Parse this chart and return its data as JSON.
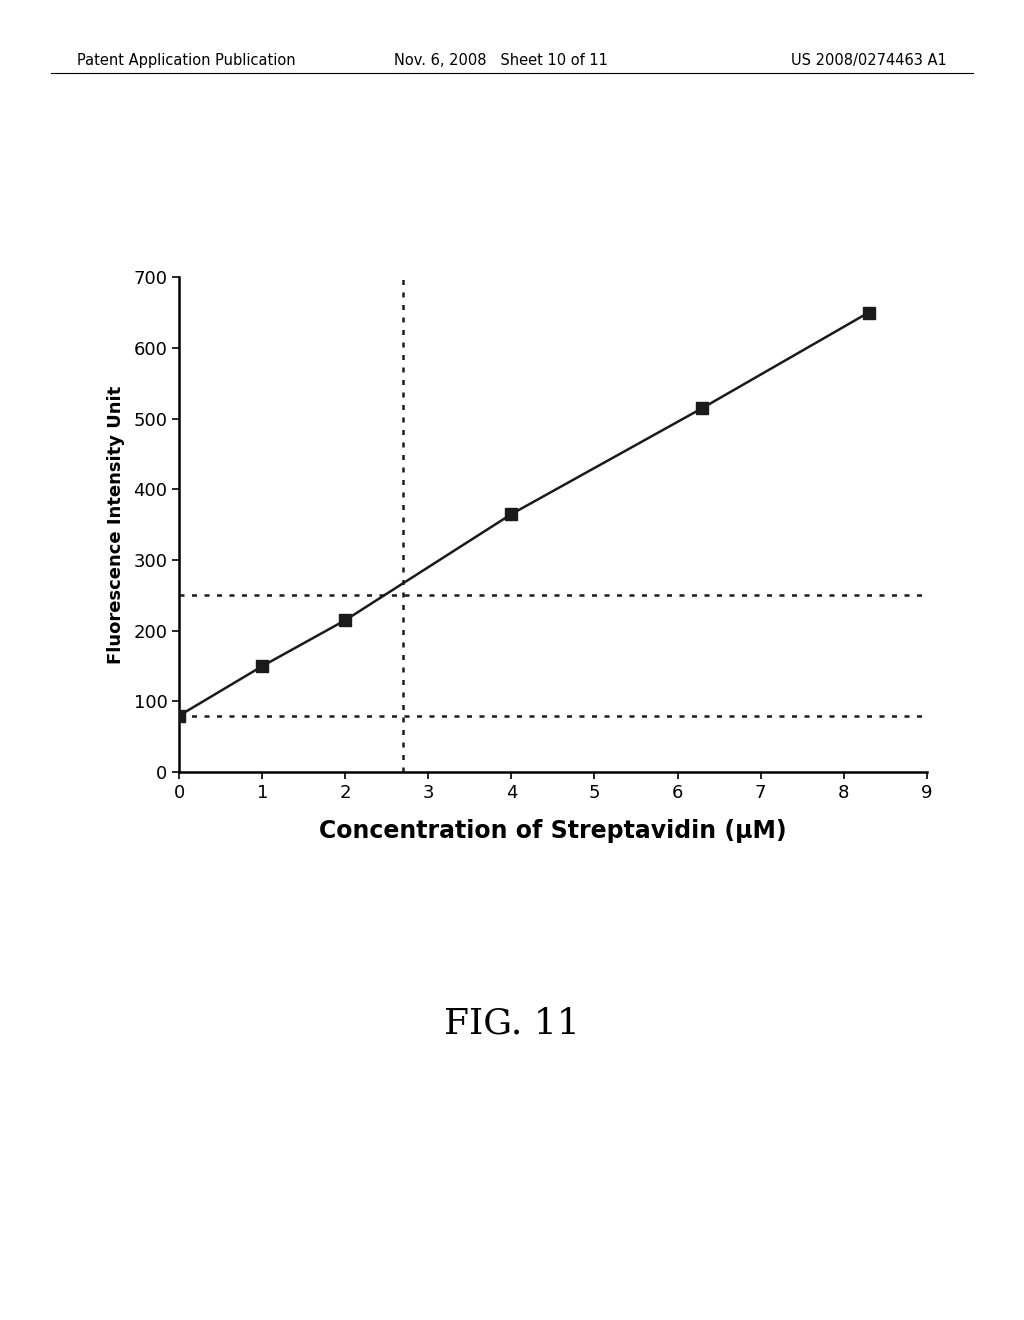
{
  "x_data": [
    0,
    1,
    2,
    4,
    6.3,
    8.3
  ],
  "y_data": [
    80,
    150,
    215,
    365,
    515,
    650
  ],
  "hline1_y": 80,
  "hline2_y": 250,
  "vline_x": 2.7,
  "xlim": [
    0,
    9
  ],
  "ylim": [
    0,
    700
  ],
  "xticks": [
    0,
    1,
    2,
    3,
    4,
    5,
    6,
    7,
    8,
    9
  ],
  "yticks": [
    0,
    100,
    200,
    300,
    400,
    500,
    600,
    700
  ],
  "xlabel": "Concentration of Streptavidin (μM)",
  "ylabel": "Fluorescence Intensity Unit",
  "fig_label": "FIG. 11",
  "header_left": "Patent Application Publication",
  "header_center": "Nov. 6, 2008   Sheet 10 of 11",
  "header_right": "US 2008/0274463 A1",
  "bg_color": "#ffffff",
  "line_color": "#1a1a1a",
  "marker_color": "#1a1a1a",
  "dashed_line_color": "#1a1a1a",
  "marker_size": 8,
  "line_width": 1.8,
  "dashed_lw": 1.8,
  "xlabel_fontsize": 17,
  "ylabel_fontsize": 13,
  "tick_fontsize": 13,
  "fig_label_fontsize": 26,
  "header_fontsize": 10.5
}
